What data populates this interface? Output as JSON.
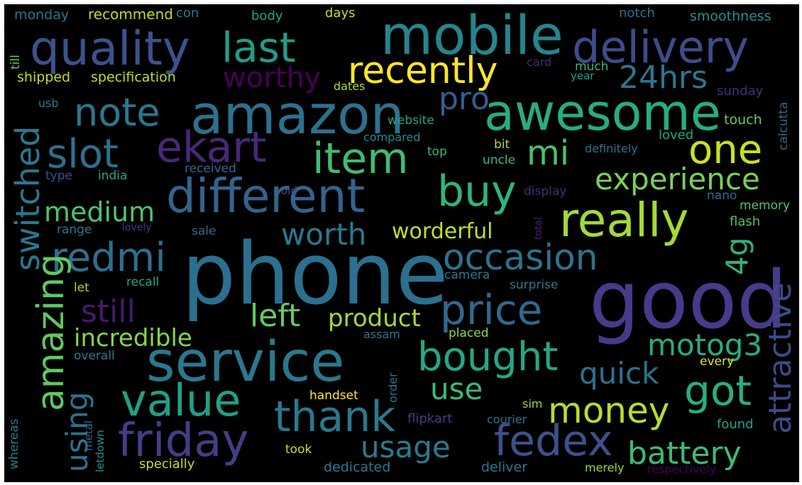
{
  "word_cloud": {
    "background": "#000000",
    "words": [
      {
        "text": "phone",
        "color": "#2c6f8e"
      },
      {
        "text": "good",
        "color": "#463b8b"
      },
      {
        "text": "service",
        "color": "#2a788e"
      },
      {
        "text": "amazon",
        "color": "#2d718e"
      },
      {
        "text": "mobile",
        "color": "#25858e"
      },
      {
        "text": "awesome",
        "color": "#27ad81"
      },
      {
        "text": "quality",
        "color": "#3b528b"
      },
      {
        "text": "delivery",
        "color": "#3e4c8a"
      },
      {
        "text": "different",
        "color": "#33638d"
      },
      {
        "text": "really",
        "color": "#a2da37"
      },
      {
        "text": "friday",
        "color": "#433e85"
      },
      {
        "text": "value",
        "color": "#1fa187"
      },
      {
        "text": "thank",
        "color": "#2a788e"
      },
      {
        "text": "fedex",
        "color": "#3b528b"
      },
      {
        "text": "ekart",
        "color": "#482878"
      },
      {
        "text": "last",
        "color": "#1f9e89"
      },
      {
        "text": "note",
        "color": "#2a788e"
      },
      {
        "text": "item",
        "color": "#3fbc73"
      },
      {
        "text": "buy",
        "color": "#2fb47c"
      },
      {
        "text": "price",
        "color": "#31688e"
      },
      {
        "text": "bought",
        "color": "#22a884"
      },
      {
        "text": "got",
        "color": "#29af7f"
      },
      {
        "text": "money",
        "color": "#b5de2b"
      },
      {
        "text": "occasion",
        "color": "#2c738e"
      },
      {
        "text": "slot",
        "color": "#2e6f8e"
      },
      {
        "text": "redmi",
        "color": "#2e6e8e"
      },
      {
        "text": "recently",
        "color": "#fde725"
      },
      {
        "text": "one",
        "color": "#c8e020"
      },
      {
        "text": "mi",
        "color": "#4ac16d"
      },
      {
        "text": "pro",
        "color": "#365d8d"
      },
      {
        "text": "24hrs",
        "color": "#2a778e"
      },
      {
        "text": "worthy",
        "color": "#440154"
      },
      {
        "text": "experience",
        "color": "#7ad151"
      },
      {
        "text": "medium",
        "color": "#4ec36b"
      },
      {
        "text": "worth",
        "color": "#2a788e"
      },
      {
        "text": "battery",
        "color": "#3dbc74"
      },
      {
        "text": "usage",
        "color": "#287c8e"
      },
      {
        "text": "motog3",
        "color": "#26ad81"
      },
      {
        "text": "quick",
        "color": "#2d708e"
      },
      {
        "text": "use",
        "color": "#3bbb75"
      },
      {
        "text": "product",
        "color": "#a0da39"
      },
      {
        "text": "left",
        "color": "#65cb5e"
      },
      {
        "text": "still",
        "color": "#48186a"
      },
      {
        "text": "incredible",
        "color": "#86d549"
      },
      {
        "text": "worderful",
        "color": "#c0df25"
      },
      {
        "text": "switched",
        "color": "#2a788e"
      },
      {
        "text": "amazing",
        "color": "#5ec962"
      },
      {
        "text": "using",
        "color": "#2c728e"
      },
      {
        "text": "attractive",
        "color": "#3e4a89"
      },
      {
        "text": "4g",
        "color": "#2fb47c"
      },
      {
        "text": "monday",
        "color": "#2a788e"
      },
      {
        "text": "recommend",
        "color": "#b8de29"
      },
      {
        "text": "con",
        "color": "#2a788e"
      },
      {
        "text": "body",
        "color": "#1fa187"
      },
      {
        "text": "days",
        "color": "#c2df23"
      },
      {
        "text": "notch",
        "color": "#2c738e"
      },
      {
        "text": "smoothness",
        "color": "#21918c"
      },
      {
        "text": "till",
        "color": "#5ec962"
      },
      {
        "text": "shipped",
        "color": "#c2df23"
      },
      {
        "text": "specification",
        "color": "#bddf26"
      },
      {
        "text": "card",
        "color": "#482878"
      },
      {
        "text": "much",
        "color": "#35b779"
      },
      {
        "text": "year",
        "color": "#1f9e89"
      },
      {
        "text": "dates",
        "color": "#addc30"
      },
      {
        "text": "sunday",
        "color": "#472d7b"
      },
      {
        "text": "calcutta",
        "color": "#31688e"
      },
      {
        "text": "usb",
        "color": "#2a788e"
      },
      {
        "text": "website",
        "color": "#22a884"
      },
      {
        "text": "touch",
        "color": "#5ec962"
      },
      {
        "text": "compared",
        "color": "#238a8d"
      },
      {
        "text": "loved",
        "color": "#20a386"
      },
      {
        "text": "bit",
        "color": "#addc30"
      },
      {
        "text": "definitely",
        "color": "#2c728e"
      },
      {
        "text": "top",
        "color": "#38b977"
      },
      {
        "text": "uncle",
        "color": "#3dbc74"
      },
      {
        "text": "type",
        "color": "#3b528b"
      },
      {
        "text": "india",
        "color": "#22a884"
      },
      {
        "text": "received",
        "color": "#31688e"
      },
      {
        "text": "display",
        "color": "#472a7a"
      },
      {
        "text": "nano",
        "color": "#2e6e8e"
      },
      {
        "text": "old",
        "color": "#3e4a89"
      },
      {
        "text": "memory",
        "color": "#54c568"
      },
      {
        "text": "flash",
        "color": "#4ac16d"
      },
      {
        "text": "total",
        "color": "#482374"
      },
      {
        "text": "range",
        "color": "#2a788e"
      },
      {
        "text": "lovely",
        "color": "#453781"
      },
      {
        "text": "sale",
        "color": "#31688e"
      },
      {
        "text": "camera",
        "color": "#2a788e"
      },
      {
        "text": "recall",
        "color": "#22a884"
      },
      {
        "text": "let",
        "color": "#a0da39"
      },
      {
        "text": "surprise",
        "color": "#2a788e"
      },
      {
        "text": "assam",
        "color": "#2a788e"
      },
      {
        "text": "placed",
        "color": "#8fd744"
      },
      {
        "text": "overall",
        "color": "#2a788e"
      },
      {
        "text": "every",
        "color": "#dde318"
      },
      {
        "text": "order",
        "color": "#2a788e"
      },
      {
        "text": "handset",
        "color": "#fde725"
      },
      {
        "text": "sim",
        "color": "#9bd93c"
      },
      {
        "text": "whereas",
        "color": "#2a788e"
      },
      {
        "text": "metal",
        "color": "#31688e"
      },
      {
        "text": "letdown",
        "color": "#21918c"
      },
      {
        "text": "flipkart",
        "color": "#433e85"
      },
      {
        "text": "courier",
        "color": "#2a788e"
      },
      {
        "text": "found",
        "color": "#1fa187"
      },
      {
        "text": "took",
        "color": "#c2df23"
      },
      {
        "text": "specially",
        "color": "#c2df23"
      },
      {
        "text": "dedicated",
        "color": "#2a788e"
      },
      {
        "text": "deliver",
        "color": "#2a788e"
      },
      {
        "text": "merely",
        "color": "#9bd93c"
      },
      {
        "text": "respectively",
        "color": "#440154"
      }
    ]
  }
}
